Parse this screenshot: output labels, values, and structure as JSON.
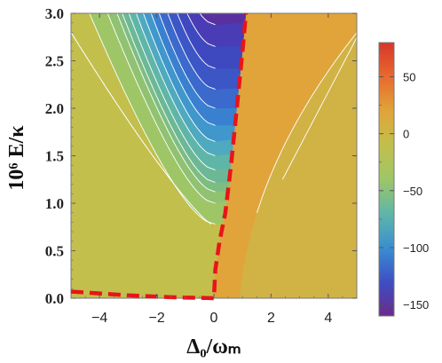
{
  "chart_data": {
    "type": "contour",
    "xlabel": "Δ₀/ωₘ",
    "ylabel": "10⁶ E/κ",
    "xlim": [
      -5,
      5
    ],
    "ylim": [
      0,
      3
    ],
    "x_ticks": [
      "−4",
      "−2",
      "0",
      "2",
      "4"
    ],
    "x_tick_values": [
      -4,
      -2,
      0,
      2,
      4
    ],
    "y_ticks": [
      "0.0",
      "0.5",
      "1.0",
      "1.5",
      "2.0",
      "2.5",
      "3.0"
    ],
    "y_tick_values": [
      0,
      0.5,
      1.0,
      1.5,
      2.0,
      2.5,
      3.0
    ],
    "colorbar": {
      "range": [
        -160,
        80
      ],
      "ticks": [
        "50",
        "0",
        "−50",
        "−100",
        "−150"
      ],
      "tick_values": [
        50,
        0,
        -50,
        -100,
        -150
      ],
      "colors": [
        "#6b2a8c",
        "#3d4fc4",
        "#3a8fd0",
        "#5fb6a8",
        "#9ec667",
        "#c2bf4c",
        "#e0a43a",
        "#e86a2e",
        "#d6362b"
      ]
    },
    "boundary_curve": {
      "color": "#e8141a",
      "style": "dashed",
      "points": [
        [
          -5,
          0.07
        ],
        [
          -3,
          0.03
        ],
        [
          -1.5,
          0.01
        ],
        [
          0,
          0.0
        ],
        [
          0.05,
          0.3
        ],
        [
          0.2,
          0.6
        ],
        [
          0.4,
          0.9
        ],
        [
          0.6,
          1.4
        ],
        [
          0.8,
          2.0
        ],
        [
          1.0,
          2.6
        ],
        [
          1.12,
          3.0
        ]
      ]
    },
    "contour_levels": [
      0.78,
      1.0,
      1.12,
      1.22,
      1.35,
      1.5,
      1.65,
      1.82,
      2.0,
      2.2,
      2.42,
      2.65,
      2.88
    ]
  }
}
